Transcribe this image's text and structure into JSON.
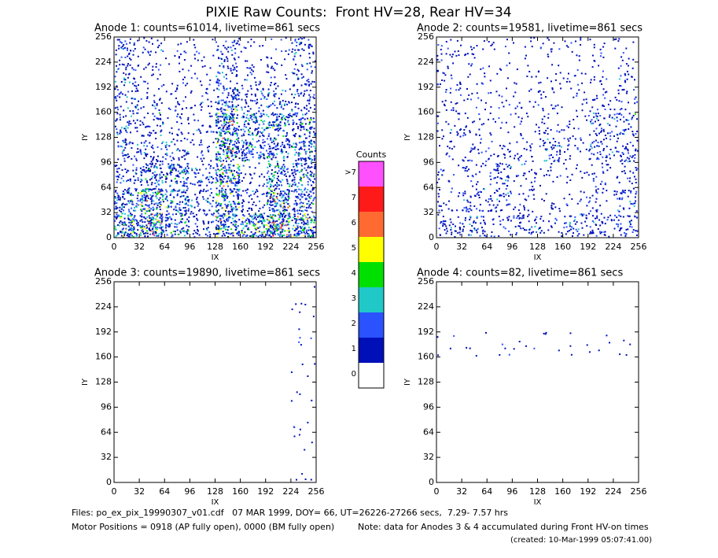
{
  "title": "PIXIE Raw Counts:  Front HV=28, Rear HV=34",
  "chart_data": [
    {
      "type": "heatmap",
      "title": "Anode 1: counts=61014, livetime=861 secs",
      "xlabel": "IX",
      "ylabel": "IY",
      "xlim": [
        0,
        256
      ],
      "ylim": [
        0,
        256
      ],
      "xticks": [
        0,
        32,
        64,
        96,
        128,
        160,
        192,
        224,
        256
      ],
      "yticks": [
        0,
        32,
        64,
        96,
        128,
        160,
        192,
        224,
        256
      ],
      "z": [
        [
          3,
          4,
          2,
          1,
          3,
          3,
          4,
          3
        ],
        [
          2,
          3,
          2,
          1,
          3,
          1,
          3,
          2
        ],
        [
          1,
          2,
          2,
          1,
          3,
          0.5,
          2,
          2
        ],
        [
          1,
          1,
          1,
          0.5,
          3,
          2,
          2,
          2
        ],
        [
          1,
          1,
          0.5,
          0.5,
          3,
          2,
          2,
          2
        ],
        [
          1,
          0.5,
          0.5,
          0.5,
          2,
          1,
          1,
          1
        ],
        [
          1,
          0.5,
          0.3,
          0.3,
          1,
          0.5,
          0.5,
          1
        ],
        [
          1,
          0.5,
          0.3,
          0.3,
          1,
          0.3,
          0.3,
          1
        ]
      ]
    },
    {
      "type": "heatmap",
      "title": "Anode 2: counts=19581, livetime=861 secs",
      "xlabel": "IX",
      "ylabel": "IY",
      "xlim": [
        0,
        256
      ],
      "ylim": [
        0,
        256
      ],
      "xticks": [
        0,
        32,
        64,
        96,
        128,
        160,
        192,
        224,
        256
      ],
      "yticks": [
        0,
        32,
        64,
        96,
        128,
        160,
        192,
        224,
        256
      ],
      "z": [
        [
          1,
          1,
          0.5,
          1,
          0.5,
          1,
          1,
          1
        ],
        [
          0.5,
          1,
          1,
          0.5,
          0.3,
          0.3,
          0.5,
          1
        ],
        [
          0.3,
          0.5,
          1,
          0.5,
          0.3,
          0.3,
          0.5,
          0.5
        ],
        [
          0.3,
          0.5,
          0.5,
          0.5,
          1,
          0.5,
          1,
          1
        ],
        [
          0.5,
          0.5,
          0.3,
          0.3,
          0.5,
          0.3,
          1,
          1
        ],
        [
          0.5,
          0.3,
          0.3,
          0.3,
          0.5,
          0.3,
          0.5,
          0.5
        ],
        [
          0.5,
          0.3,
          0.2,
          0.2,
          0.3,
          0.3,
          0.3,
          0.5
        ],
        [
          0.5,
          0.3,
          0.2,
          0.2,
          0.3,
          0.3,
          0.3,
          0.3
        ]
      ]
    },
    {
      "type": "heatmap",
      "title": "Anode 3: counts=19890, livetime=861 secs",
      "xlabel": "IX",
      "ylabel": "IY",
      "xlim": [
        0,
        256
      ],
      "ylim": [
        0,
        256
      ],
      "xticks": [
        0,
        32,
        64,
        96,
        128,
        160,
        192,
        224,
        256
      ],
      "yticks": [
        0,
        32,
        64,
        96,
        128,
        160,
        192,
        224,
        256
      ],
      "z": [
        [
          0,
          0,
          0,
          0,
          0,
          0,
          0,
          0.1
        ],
        [
          0,
          0,
          0,
          0,
          0,
          0,
          0,
          0.1
        ],
        [
          0,
          0,
          0,
          0,
          0,
          0,
          0,
          0.1
        ],
        [
          0,
          0,
          0,
          0,
          0,
          0,
          0,
          0.1
        ],
        [
          0,
          0,
          0,
          0,
          0,
          0,
          0,
          0.1
        ],
        [
          0,
          0,
          0,
          0,
          0,
          0,
          0,
          0.1
        ],
        [
          0,
          0,
          0,
          0,
          0,
          0,
          0,
          0.1
        ],
        [
          0,
          0,
          0,
          0,
          0,
          0,
          0,
          0.1
        ]
      ]
    },
    {
      "type": "heatmap",
      "title": "Anode 4: counts=82, livetime=861 secs",
      "xlabel": "IX",
      "ylabel": "IY",
      "xlim": [
        0,
        256
      ],
      "ylim": [
        0,
        256
      ],
      "xticks": [
        0,
        32,
        64,
        96,
        128,
        160,
        192,
        224,
        256
      ],
      "yticks": [
        0,
        32,
        64,
        96,
        128,
        160,
        192,
        224,
        256
      ],
      "z": [
        [
          0,
          0,
          0,
          0,
          0,
          0,
          0,
          0
        ],
        [
          0,
          0,
          0,
          0,
          0,
          0,
          0,
          0
        ],
        [
          0,
          0,
          0,
          0,
          0,
          0,
          0,
          0
        ],
        [
          0,
          0,
          0,
          0,
          0,
          0,
          0,
          0
        ],
        [
          0,
          0,
          0,
          0,
          0,
          0,
          0,
          0
        ],
        [
          0.1,
          0.1,
          0.1,
          0.1,
          0.1,
          0.1,
          0.1,
          0.1
        ],
        [
          0,
          0,
          0,
          0,
          0,
          0,
          0,
          0
        ],
        [
          0,
          0,
          0,
          0,
          0,
          0,
          0,
          0
        ]
      ]
    }
  ],
  "colorbar": {
    "title": "Counts",
    "labels": [
      "0",
      "1",
      "2",
      "3",
      "4",
      "5",
      "6",
      "7",
      ">7"
    ],
    "colors": [
      "#ffffff",
      "#0010b8",
      "#2a52ff",
      "#20c8c8",
      "#00e000",
      "#ffff00",
      "#ff6a30",
      "#ff1a1a",
      "#ff50ff"
    ]
  },
  "footer": {
    "files": "Files: po_ex_pix_19990307_v01.cdf   07 MAR 1999, DOY= 66, UT=26226-27266 secs,  7.29- 7.57 hrs",
    "motor": "Motor Positions = 0918 (AP fully open), 0000 (BM fully open)",
    "note": "Note: data for Anodes 3 & 4 accumulated during Front HV-on times",
    "created": "(created: 10-Mar-1999 05:07:41.00)"
  }
}
